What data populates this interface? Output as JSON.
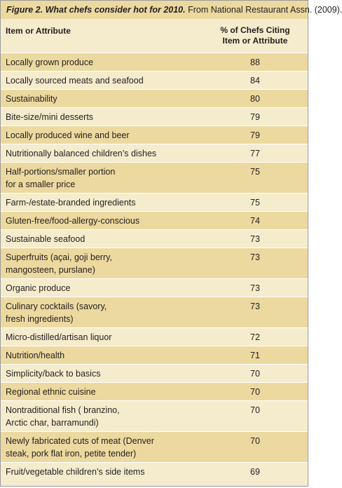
{
  "caption": {
    "lead": "Figure 2. What chefs consider hot for 2010.",
    "source": "From National Restaurant Assn. (2009)."
  },
  "header": {
    "item": "Item or Attribute",
    "pct_line1": "% of Chefs Citing",
    "pct_line2": "Item or Attribute"
  },
  "rows": [
    {
      "line1": "Locally grown produce",
      "line2": "",
      "value": "88"
    },
    {
      "line1": "Locally sourced meats and seafood",
      "line2": "",
      "value": "84"
    },
    {
      "line1": "Sustainability",
      "line2": "",
      "value": "80"
    },
    {
      "line1": "Bite-size/mini desserts",
      "line2": "",
      "value": "79"
    },
    {
      "line1": "Locally produced wine and beer",
      "line2": "",
      "value": "79"
    },
    {
      "line1": "Nutritionally balanced children’s dishes",
      "line2": "",
      "value": "77"
    },
    {
      "line1": "Half-portions/smaller portion",
      "line2": "for a smaller price",
      "value": "75"
    },
    {
      "line1": "Farm-/estate-branded ingredients",
      "line2": "",
      "value": "75"
    },
    {
      "line1": "Gluten-free/food-allergy-conscious",
      "line2": "",
      "value": "74"
    },
    {
      "line1": "Sustainable seafood",
      "line2": "",
      "value": "73"
    },
    {
      "line1": "Superfruits (açai, goji berry,",
      "line2": "mangosteen, purslane)",
      "value": "73"
    },
    {
      "line1": "Organic produce",
      "line2": "",
      "value": "73"
    },
    {
      "line1": "Culinary cocktails (savory,",
      "line2": "fresh ingredients)",
      "value": "73"
    },
    {
      "line1": "Micro-distilled/artisan liquor",
      "line2": "",
      "value": "72"
    },
    {
      "line1": "Nutrition/health",
      "line2": "",
      "value": "71"
    },
    {
      "line1": "Simplicity/back to basics",
      "line2": "",
      "value": "70"
    },
    {
      "line1": "Regional ethnic cuisine",
      "line2": "",
      "value": "70"
    },
    {
      "line1": "Nontraditional fish ( branzino,",
      "line2": "Arctic char, barramundi)",
      "value": "70"
    },
    {
      "line1": "Newly fabricated cuts of meat (Denver",
      "line2": "steak, pork flat iron, petite tender)",
      "value": "70"
    },
    {
      "line1": "Fruit/vegetable children’s side items",
      "line2": "",
      "value": "69"
    }
  ]
}
